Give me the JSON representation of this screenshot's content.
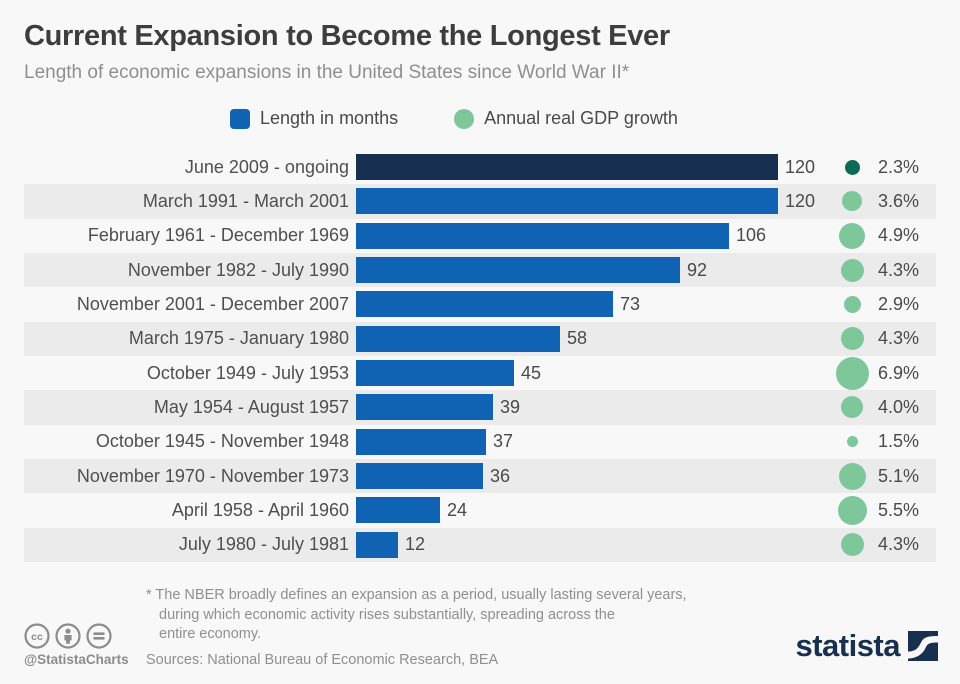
{
  "header": {
    "title": "Current Expansion to Become the Longest Ever",
    "subtitle": "Length of economic expansions in the United States since World War II*"
  },
  "legend": {
    "bar_label": "Length in months",
    "circle_label": "Annual real GDP growth"
  },
  "chart_data": {
    "type": "bar",
    "orientation": "horizontal",
    "title": "Current Expansion to Become the Longest Ever",
    "subtitle": "Length of economic expansions in the United States since World War II*",
    "xlim": [
      0,
      128
    ],
    "grid": false,
    "legend_position": "top-center",
    "categories": [
      "June 2009 - ongoing",
      "March 1991 - March 2001",
      "February 1961 - December 1969",
      "November 1982 - July 1990",
      "November 2001 - December 2007",
      "March 1975 - January 1980",
      "October 1949 - July 1953",
      "May 1954 - August 1957",
      "October 1945 - November 1948",
      "November 1970 - November 1973",
      "April 1958 - April 1960",
      "July 1980 - July 1981"
    ],
    "series": [
      {
        "name": "Length in months",
        "values": [
          120,
          120,
          106,
          92,
          73,
          58,
          45,
          39,
          37,
          36,
          24,
          12
        ]
      },
      {
        "name": "Annual real GDP growth",
        "unit": "%",
        "values": [
          2.3,
          3.6,
          4.9,
          4.3,
          2.9,
          4.3,
          6.9,
          4.0,
          1.5,
          5.1,
          5.5,
          4.3
        ]
      }
    ],
    "rows": [
      {
        "period": "June 2009 - ongoing",
        "months": 120,
        "gdp": 2.3,
        "gdp_label": "2.3%",
        "highlight": true
      },
      {
        "period": "March 1991 - March 2001",
        "months": 120,
        "gdp": 3.6,
        "gdp_label": "3.6%"
      },
      {
        "period": "February 1961 - December 1969",
        "months": 106,
        "gdp": 4.9,
        "gdp_label": "4.9%"
      },
      {
        "period": "November 1982 - July 1990",
        "months": 92,
        "gdp": 4.3,
        "gdp_label": "4.3%"
      },
      {
        "period": "November 2001 - December 2007",
        "months": 73,
        "gdp": 2.9,
        "gdp_label": "2.9%"
      },
      {
        "period": "March 1975 - January 1980",
        "months": 58,
        "gdp": 4.3,
        "gdp_label": "4.3%"
      },
      {
        "period": "October 1949 - July 1953",
        "months": 45,
        "gdp": 6.9,
        "gdp_label": "6.9%"
      },
      {
        "period": "May 1954 - August 1957",
        "months": 39,
        "gdp": 4.0,
        "gdp_label": "4.0%"
      },
      {
        "period": "October 1945 - November 1948",
        "months": 37,
        "gdp": 1.5,
        "gdp_label": "1.5%"
      },
      {
        "period": "November 1970 - November 1973",
        "months": 36,
        "gdp": 5.1,
        "gdp_label": "5.1%"
      },
      {
        "period": "April 1958 - April 1960",
        "months": 24,
        "gdp": 5.5,
        "gdp_label": "5.5%"
      },
      {
        "period": "July 1980 - July 1981",
        "months": 12,
        "gdp": 4.3,
        "gdp_label": "4.3%"
      }
    ]
  },
  "footer": {
    "footnote_line1": "* The NBER broadly defines an expansion as a period, usually lasting several years,",
    "footnote_line2": "during which economic activity rises substantially, spreading across the",
    "footnote_line3": "entire economy.",
    "sources": "Sources: National Bureau of Economic Research, BEA",
    "credit": "@StatistaCharts",
    "brand": "statista",
    "license_icons": [
      "cc-icon",
      "attribution-icon",
      "no-derivatives-icon"
    ]
  },
  "colors": {
    "background": "#f8f8f8",
    "row_band": "#ebebeb",
    "bar_blue": "#0f63b2",
    "bar_navy": "#17304f",
    "dot_green": "#7ec79b",
    "dot_dark_green": "#0c6b52",
    "brand_navy": "#17304f",
    "icon_gray": "#8c8c8c"
  }
}
